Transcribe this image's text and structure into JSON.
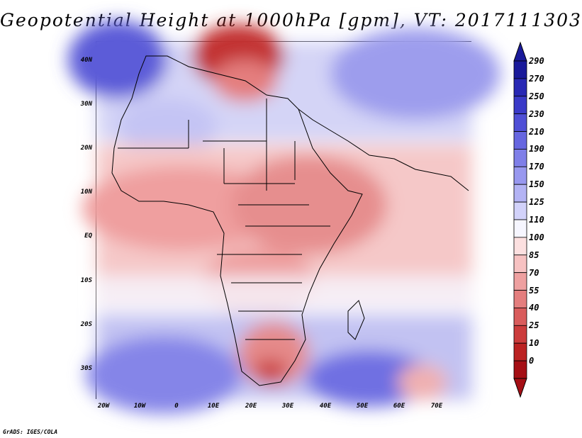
{
  "title": "Geopotential Height at 1000hPa [gpm], VT: 2017111303",
  "credit": "GrADS: IGES/COLA",
  "map": {
    "variable": "Geopotential Height",
    "level": "1000hPa",
    "units": "gpm",
    "valid_time": "2017111303",
    "lat_labels": [
      "40N",
      "30N",
      "20N",
      "10N",
      "EQ",
      "10S",
      "20S",
      "30S"
    ],
    "lon_labels": [
      "20W",
      "10W",
      "0",
      "10E",
      "20E",
      "30E",
      "40E",
      "50E",
      "60E",
      "70E"
    ]
  },
  "colorbar": {
    "levels": [
      "290",
      "270",
      "250",
      "230",
      "210",
      "190",
      "170",
      "150",
      "125",
      "110",
      "100",
      "85",
      "70",
      "55",
      "40",
      "25",
      "10",
      "0"
    ],
    "colors": [
      "#1a1a9a",
      "#2828b4",
      "#3a3ac8",
      "#4f4fd6",
      "#6666e0",
      "#7f7fe8",
      "#9898ef",
      "#b3b3f4",
      "#d2d2fa",
      "#f6f6ff",
      "#fce0e0",
      "#f7c2c2",
      "#eea0a0",
      "#e47e7e",
      "#d95c5c",
      "#cc3c3c",
      "#bb2222",
      "#a50f15"
    ]
  }
}
